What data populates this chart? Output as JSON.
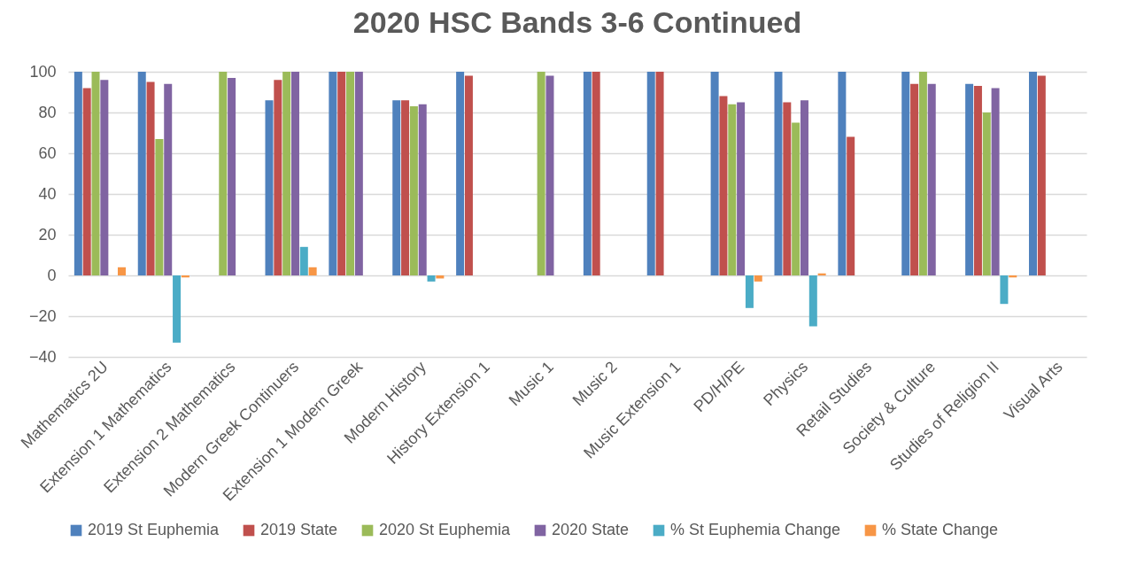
{
  "chart_data": {
    "type": "bar",
    "title": "2020 HSC Bands 3-6 Continued",
    "categories": [
      "Mathematics 2U",
      "Extension 1 Mathematics",
      "Extension 2 Mathematics",
      "Modern Greek Continuers",
      "Extension 1 Modern Greek",
      "Modern History",
      "History Extension 1",
      "Music 1",
      "Music 2",
      "Music Extension 1",
      "PD/H/PE",
      "Physics",
      "Retail Studies",
      "Society & Culture",
      "Studies of Religion II",
      "Visual Arts"
    ],
    "series": [
      {
        "name": "2019 St Euphemia",
        "color": "#4f81bd",
        "values": [
          100,
          100,
          null,
          86,
          100,
          86,
          100,
          null,
          100,
          100,
          100,
          100,
          100,
          100,
          94,
          100
        ]
      },
      {
        "name": "2019 State",
        "color": "#c0504d",
        "values": [
          92,
          95,
          null,
          96,
          100,
          86,
          98,
          null,
          100,
          100,
          88,
          85,
          68,
          94,
          93,
          98
        ]
      },
      {
        "name": "2020 St Euphemia",
        "color": "#9bbb59",
        "values": [
          100,
          67,
          100,
          100,
          100,
          83,
          null,
          100,
          null,
          null,
          84,
          75,
          null,
          100,
          80,
          null
        ]
      },
      {
        "name": "2020 State",
        "color": "#8064a2",
        "values": [
          96,
          94,
          97,
          100,
          100,
          84,
          null,
          98,
          null,
          null,
          85,
          86,
          null,
          94,
          92,
          null
        ]
      },
      {
        "name": "% St Euphemia Change",
        "color": "#4bacc6",
        "values": [
          null,
          -33,
          null,
          14,
          null,
          -3,
          null,
          null,
          null,
          null,
          -16,
          -25,
          null,
          null,
          -14,
          null
        ]
      },
      {
        "name": "% State Change",
        "color": "#f79646",
        "values": [
          4,
          -1,
          null,
          4,
          null,
          -1.5,
          null,
          null,
          null,
          null,
          -3,
          1,
          null,
          null,
          -1,
          null
        ]
      }
    ],
    "ylim": [
      -40,
      100
    ],
    "yticks": [
      -40,
      -20,
      0,
      20,
      40,
      60,
      80,
      100
    ],
    "grid": "y",
    "legend": "bottom"
  }
}
